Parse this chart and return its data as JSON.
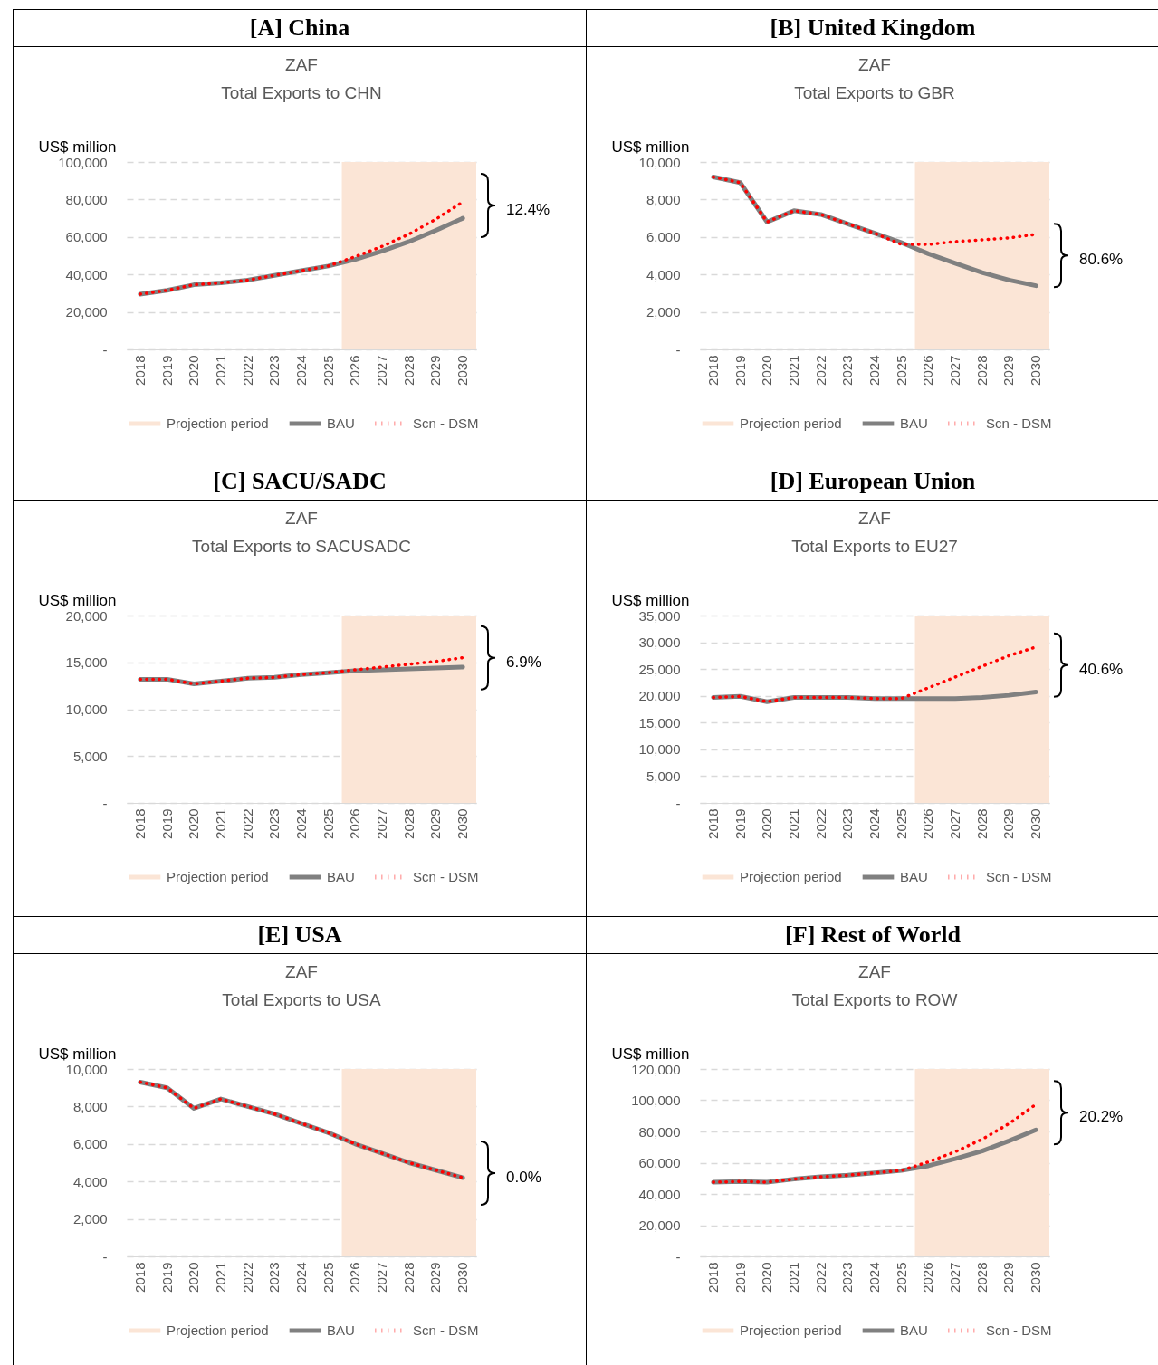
{
  "chart_data": [
    {
      "type": "line",
      "title": "[A] China",
      "subtitle": "ZAF\nTotal Exports to CHN",
      "ylabel": "US$ million",
      "categories": [
        "2018",
        "2019",
        "2020",
        "2021",
        "2022",
        "2023",
        "2024",
        "2025",
        "2026",
        "2027",
        "2028",
        "2029",
        "2030"
      ],
      "series": [
        {
          "name": "BAU",
          "color": "#808080",
          "line_style": "solid",
          "values": [
            29500,
            31500,
            34500,
            35500,
            37000,
            39500,
            42000,
            44500,
            48000,
            52500,
            57500,
            63500,
            70000
          ]
        },
        {
          "name": "Scn - DSM",
          "color": "#ff0000",
          "line_style": "dotted",
          "values": [
            29500,
            31500,
            34500,
            35500,
            37000,
            39500,
            42000,
            44500,
            49500,
            55000,
            61500,
            69500,
            78700
          ]
        }
      ],
      "ylim": [
        0,
        100000
      ],
      "yticks": [
        {
          "value": 0,
          "label": "-"
        },
        {
          "value": 20000,
          "label": "20,000"
        },
        {
          "value": 40000,
          "label": "40,000"
        },
        {
          "value": 60000,
          "label": "60,000"
        },
        {
          "value": 80000,
          "label": "80,000"
        },
        {
          "value": 100000,
          "label": "100,000"
        }
      ],
      "grid": "y",
      "legend": "bottom",
      "bands": [
        {
          "axis": "x",
          "from": "2026",
          "to": "2030",
          "label": "Projection period",
          "color": "#fbe5d6"
        }
      ],
      "annotations": [
        "12.4%"
      ]
    },
    {
      "type": "line",
      "title": "[B] United Kingdom",
      "subtitle": "ZAF\nTotal Exports to GBR",
      "ylabel": "US$ million",
      "categories": [
        "2018",
        "2019",
        "2020",
        "2021",
        "2022",
        "2023",
        "2024",
        "2025",
        "2026",
        "2027",
        "2028",
        "2029",
        "2030"
      ],
      "series": [
        {
          "name": "BAU",
          "color": "#808080",
          "line_style": "solid",
          "values": [
            9200,
            8900,
            6800,
            7400,
            7200,
            6700,
            6200,
            5700,
            5100,
            4600,
            4100,
            3700,
            3400
          ]
        },
        {
          "name": "Scn - DSM",
          "color": "#ff0000",
          "line_style": "dotted",
          "values": [
            9200,
            8900,
            6800,
            7400,
            7200,
            6700,
            6200,
            5600,
            5600,
            5750,
            5850,
            5950,
            6140
          ]
        }
      ],
      "ylim": [
        0,
        10000
      ],
      "yticks": [
        {
          "value": 0,
          "label": "-"
        },
        {
          "value": 2000,
          "label": "2,000"
        },
        {
          "value": 4000,
          "label": "4,000"
        },
        {
          "value": 6000,
          "label": "6,000"
        },
        {
          "value": 8000,
          "label": "8,000"
        },
        {
          "value": 10000,
          "label": "10,000"
        }
      ],
      "grid": "y",
      "legend": "bottom",
      "bands": [
        {
          "axis": "x",
          "from": "2026",
          "to": "2030",
          "label": "Projection period",
          "color": "#fbe5d6"
        }
      ],
      "annotations": [
        "80.6%"
      ]
    },
    {
      "type": "line",
      "title": "[C] SACU/SADC",
      "subtitle": "ZAF\nTotal Exports to SACUSADC",
      "ylabel": "US$ million",
      "categories": [
        "2018",
        "2019",
        "2020",
        "2021",
        "2022",
        "2023",
        "2024",
        "2025",
        "2026",
        "2027",
        "2028",
        "2029",
        "2030"
      ],
      "series": [
        {
          "name": "BAU",
          "color": "#808080",
          "line_style": "solid",
          "values": [
            13200,
            13200,
            12700,
            13000,
            13300,
            13400,
            13700,
            13900,
            14100,
            14200,
            14300,
            14400,
            14500
          ]
        },
        {
          "name": "Scn - DSM",
          "color": "#ff0000",
          "line_style": "dotted",
          "values": [
            13200,
            13200,
            12700,
            13000,
            13300,
            13400,
            13700,
            13900,
            14200,
            14500,
            14800,
            15100,
            15500
          ]
        }
      ],
      "ylim": [
        0,
        20000
      ],
      "yticks": [
        {
          "value": 0,
          "label": "-"
        },
        {
          "value": 5000,
          "label": "5,000"
        },
        {
          "value": 10000,
          "label": "10,000"
        },
        {
          "value": 15000,
          "label": "15,000"
        },
        {
          "value": 20000,
          "label": "20,000"
        }
      ],
      "grid": "y",
      "legend": "bottom",
      "bands": [
        {
          "axis": "x",
          "from": "2026",
          "to": "2030",
          "label": "Projection period",
          "color": "#fbe5d6"
        }
      ],
      "annotations": [
        "6.9%"
      ]
    },
    {
      "type": "line",
      "title": "[D] European Union",
      "subtitle": "ZAF\nTotal Exports to EU27",
      "ylabel": "US$ million",
      "categories": [
        "2018",
        "2019",
        "2020",
        "2021",
        "2022",
        "2023",
        "2024",
        "2025",
        "2026",
        "2027",
        "2028",
        "2029",
        "2030"
      ],
      "series": [
        {
          "name": "BAU",
          "color": "#808080",
          "line_style": "solid",
          "values": [
            19700,
            19900,
            18900,
            19700,
            19700,
            19700,
            19500,
            19500,
            19500,
            19500,
            19700,
            20100,
            20700
          ]
        },
        {
          "name": "Scn - DSM",
          "color": "#ff0000",
          "line_style": "dotted",
          "values": [
            19700,
            19900,
            18900,
            19700,
            19700,
            19700,
            19500,
            19500,
            21500,
            23500,
            25500,
            27500,
            29100
          ]
        }
      ],
      "ylim": [
        0,
        35000
      ],
      "yticks": [
        {
          "value": 0,
          "label": "-"
        },
        {
          "value": 5000,
          "label": "5,000"
        },
        {
          "value": 10000,
          "label": "10,000"
        },
        {
          "value": 15000,
          "label": "15,000"
        },
        {
          "value": 20000,
          "label": "20,000"
        },
        {
          "value": 25000,
          "label": "25,000"
        },
        {
          "value": 30000,
          "label": "30,000"
        },
        {
          "value": 35000,
          "label": "35,000"
        }
      ],
      "grid": "y",
      "legend": "bottom",
      "bands": [
        {
          "axis": "x",
          "from": "2026",
          "to": "2030",
          "label": "Projection period",
          "color": "#fbe5d6"
        }
      ],
      "annotations": [
        "40.6%"
      ]
    },
    {
      "type": "line",
      "title": "[E] USA",
      "subtitle": "ZAF\nTotal Exports to USA",
      "ylabel": "US$ million",
      "categories": [
        "2018",
        "2019",
        "2020",
        "2021",
        "2022",
        "2023",
        "2024",
        "2025",
        "2026",
        "2027",
        "2028",
        "2029",
        "2030"
      ],
      "series": [
        {
          "name": "BAU",
          "color": "#808080",
          "line_style": "solid",
          "values": [
            9300,
            9000,
            7900,
            8400,
            8000,
            7600,
            7100,
            6600,
            6000,
            5500,
            5000,
            4600,
            4200
          ]
        },
        {
          "name": "Scn - DSM",
          "color": "#ff0000",
          "line_style": "dotted",
          "values": [
            9300,
            9000,
            7900,
            8400,
            8000,
            7600,
            7100,
            6600,
            6000,
            5500,
            5000,
            4600,
            4200
          ]
        }
      ],
      "ylim": [
        0,
        10000
      ],
      "yticks": [
        {
          "value": 0,
          "label": "-"
        },
        {
          "value": 2000,
          "label": "2,000"
        },
        {
          "value": 4000,
          "label": "4,000"
        },
        {
          "value": 6000,
          "label": "6,000"
        },
        {
          "value": 8000,
          "label": "8,000"
        },
        {
          "value": 10000,
          "label": "10,000"
        }
      ],
      "grid": "y",
      "legend": "bottom",
      "bands": [
        {
          "axis": "x",
          "from": "2026",
          "to": "2030",
          "label": "Projection period",
          "color": "#fbe5d6"
        }
      ],
      "annotations": [
        "0.0%"
      ]
    },
    {
      "type": "line",
      "title": "[F] Rest of World",
      "subtitle": "ZAF\nTotal Exports to ROW",
      "ylabel": "US$ million",
      "categories": [
        "2018",
        "2019",
        "2020",
        "2021",
        "2022",
        "2023",
        "2024",
        "2025",
        "2026",
        "2027",
        "2028",
        "2029",
        "2030"
      ],
      "series": [
        {
          "name": "BAU",
          "color": "#808080",
          "line_style": "solid",
          "values": [
            47500,
            48000,
            47500,
            49500,
            51000,
            52000,
            53500,
            55000,
            58000,
            62500,
            67500,
            74000,
            81000
          ]
        },
        {
          "name": "Scn - DSM",
          "color": "#ff0000",
          "line_style": "dotted",
          "values": [
            47500,
            48000,
            47500,
            49500,
            51000,
            52000,
            53500,
            55000,
            60500,
            67000,
            75000,
            85000,
            97400
          ]
        }
      ],
      "ylim": [
        0,
        120000
      ],
      "yticks": [
        {
          "value": 0,
          "label": "-"
        },
        {
          "value": 20000,
          "label": "20,000"
        },
        {
          "value": 40000,
          "label": "40,000"
        },
        {
          "value": 60000,
          "label": "60,000"
        },
        {
          "value": 80000,
          "label": "80,000"
        },
        {
          "value": 100000,
          "label": "100,000"
        },
        {
          "value": 120000,
          "label": "120,000"
        }
      ],
      "grid": "y",
      "legend": "bottom",
      "bands": [
        {
          "axis": "x",
          "from": "2026",
          "to": "2030",
          "label": "Projection period",
          "color": "#fbe5d6"
        }
      ],
      "annotations": [
        "20.2%"
      ]
    }
  ]
}
